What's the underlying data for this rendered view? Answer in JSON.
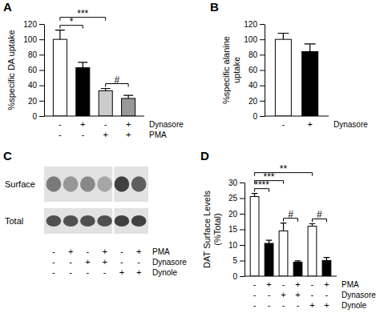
{
  "chart_data": [
    {
      "type": "bar",
      "title": "A",
      "y_label": [
        "%specific DA uptake"
      ],
      "values": [
        100,
        63,
        33,
        23
      ],
      "errors": [
        12,
        7,
        3,
        4
      ],
      "colors": [
        "#ffffff",
        "#000000",
        "#cccccc",
        "#999999"
      ],
      "ylim": [
        0,
        120
      ],
      "yticks": [
        0,
        20,
        40,
        60,
        80,
        100,
        120
      ],
      "conditions": [
        {
          "name": "Dynasore",
          "values": [
            "-",
            "+",
            "-",
            "+"
          ]
        },
        {
          "name": "PMA",
          "values": [
            "-",
            "-",
            "+",
            "+"
          ]
        }
      ],
      "annotations": [
        {
          "text": "*",
          "from": 0,
          "to": 1
        },
        {
          "text": "***",
          "from": 0,
          "to": 2
        },
        {
          "text": "#",
          "from": 2,
          "to": 3
        }
      ]
    },
    {
      "type": "bar",
      "title": "B",
      "y_label": [
        "%specific alanine",
        "uptake"
      ],
      "values": [
        100,
        84
      ],
      "errors": [
        8,
        10
      ],
      "colors": [
        "#ffffff",
        "#000000"
      ],
      "ylim": [
        0,
        120
      ],
      "yticks": [
        0,
        20,
        40,
        60,
        80,
        100,
        120
      ],
      "conditions": [
        {
          "name": "Dynasore",
          "values": [
            "-",
            "+"
          ]
        }
      ]
    },
    {
      "type": "blot",
      "title": "C",
      "series": [
        {
          "name": "Surface",
          "values": [
            0.6,
            0.5,
            0.55,
            0.45,
            0.8,
            0.7
          ]
        },
        {
          "name": "Total",
          "values": [
            0.75,
            0.75,
            0.75,
            0.75,
            0.8,
            0.8
          ]
        }
      ],
      "conditions": [
        {
          "name": "PMA",
          "values": [
            "-",
            "+",
            "-",
            "+",
            "-",
            "+"
          ]
        },
        {
          "name": "Dynasore",
          "values": [
            "-",
            "-",
            "+",
            "+",
            "-",
            "-"
          ]
        },
        {
          "name": "Dynole",
          "values": [
            "-",
            "-",
            "-",
            "-",
            "+",
            "+"
          ]
        }
      ]
    },
    {
      "type": "bar",
      "title": "D",
      "y_label": [
        "DAT Surface Levels",
        "(%Total)"
      ],
      "values": [
        25.5,
        10.5,
        14.5,
        4.5,
        16,
        5
      ],
      "errors": [
        1,
        1,
        2.5,
        0.4,
        0.8,
        1
      ],
      "colors": [
        "#ffffff",
        "#000000",
        "#ffffff",
        "#000000",
        "#ffffff",
        "#000000"
      ],
      "ylim": [
        0,
        30
      ],
      "yticks": [
        0,
        5,
        10,
        15,
        20,
        25,
        30
      ],
      "conditions": [
        {
          "name": "PMA",
          "values": [
            "-",
            "+",
            "-",
            "+",
            "-",
            "+"
          ]
        },
        {
          "name": "Dynasore",
          "values": [
            "-",
            "-",
            "+",
            "+",
            "-",
            "-"
          ]
        },
        {
          "name": "Dynole",
          "values": [
            "-",
            "-",
            "-",
            "-",
            "+",
            "+"
          ]
        }
      ],
      "annotations": [
        {
          "text": "****",
          "from": 0,
          "to": 1
        },
        {
          "text": "***",
          "from": 0,
          "to": 2
        },
        {
          "text": "**",
          "from": 0,
          "to": 4
        },
        {
          "text": "#",
          "from": 2,
          "to": 3
        },
        {
          "text": "#",
          "from": 4,
          "to": 5
        }
      ]
    }
  ]
}
